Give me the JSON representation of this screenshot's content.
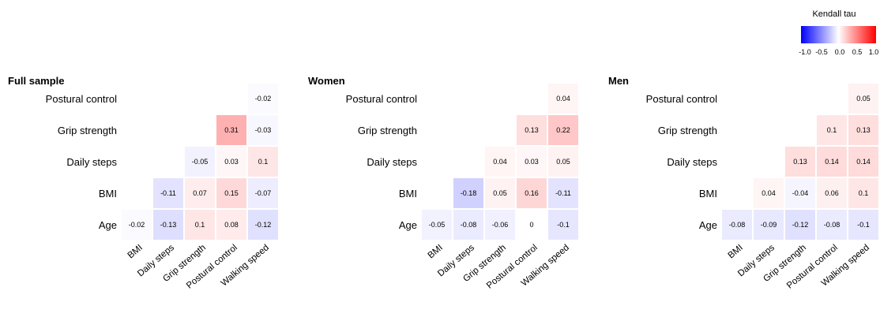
{
  "chart_data": [
    {
      "type": "heatmap",
      "title": "Full sample",
      "row_labels": [
        "Postural control",
        "Grip strength",
        "Daily steps",
        "BMI",
        "Age"
      ],
      "col_labels": [
        "BMI",
        "Daily steps",
        "Grip strength",
        "Postural control",
        "Walking speed"
      ],
      "values": [
        [
          null,
          null,
          null,
          null,
          -0.02
        ],
        [
          null,
          null,
          null,
          0.31,
          -0.03
        ],
        [
          null,
          null,
          -0.05,
          0.03,
          0.1
        ],
        [
          null,
          -0.11,
          0.07,
          0.15,
          -0.07
        ],
        [
          -0.02,
          -0.13,
          0.1,
          0.08,
          -0.12
        ]
      ]
    },
    {
      "type": "heatmap",
      "title": "Women",
      "row_labels": [
        "Postural control",
        "Grip strength",
        "Daily steps",
        "BMI",
        "Age"
      ],
      "col_labels": [
        "BMI",
        "Daily steps",
        "Grip strength",
        "Postural control",
        "Walking speed"
      ],
      "values": [
        [
          null,
          null,
          null,
          null,
          0.04
        ],
        [
          null,
          null,
          null,
          0.13,
          0.22
        ],
        [
          null,
          null,
          0.04,
          0.03,
          0.05
        ],
        [
          null,
          -0.18,
          0.05,
          0.16,
          -0.11
        ],
        [
          -0.05,
          -0.08,
          -0.06,
          0,
          -0.1
        ]
      ]
    },
    {
      "type": "heatmap",
      "title": "Men",
      "row_labels": [
        "Postural control",
        "Grip strength",
        "Daily steps",
        "BMI",
        "Age"
      ],
      "col_labels": [
        "BMI",
        "Daily steps",
        "Grip strength",
        "Postural control",
        "Walking speed"
      ],
      "values": [
        [
          null,
          null,
          null,
          null,
          0.05
        ],
        [
          null,
          null,
          null,
          0.1,
          0.13
        ],
        [
          null,
          null,
          0.13,
          0.14,
          0.14
        ],
        [
          null,
          0.04,
          -0.04,
          0.06,
          0.1
        ],
        [
          -0.08,
          -0.09,
          -0.12,
          -0.08,
          -0.1
        ]
      ]
    }
  ],
  "legend": {
    "title": "Kendall tau",
    "ticks": [
      "-1.0",
      "-0.5",
      "0.0",
      "0.5",
      "1.0"
    ],
    "range": [
      -1.0,
      1.0
    ],
    "low_color": "#0000ff",
    "mid_color": "#ffffff",
    "high_color": "#ff0000"
  }
}
